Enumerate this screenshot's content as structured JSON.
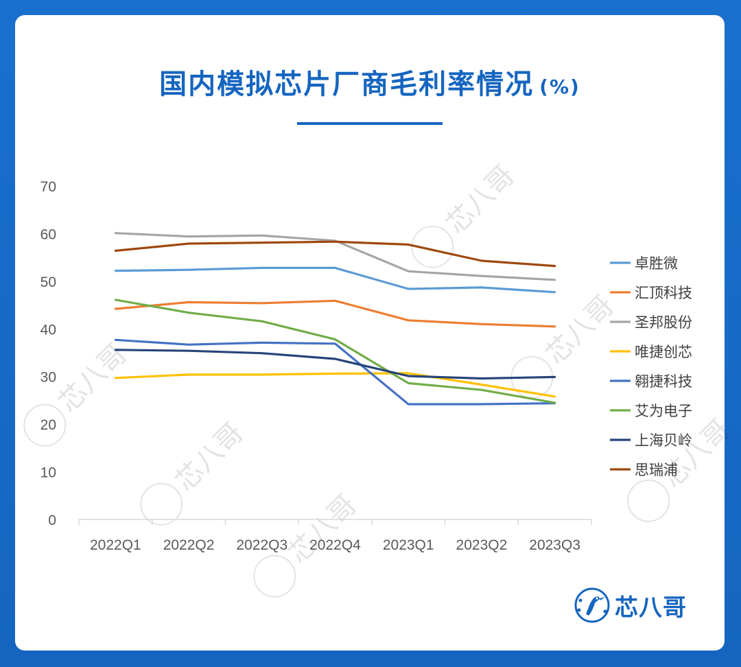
{
  "page": {
    "title": "国内模拟芯片厂商毛利率情况",
    "title_unit": "(%)",
    "brand_name": "芯八哥",
    "background_color": "#1565c0",
    "card_color": "#ffffff",
    "watermark_text": "芯八哥"
  },
  "chart_data": {
    "type": "line",
    "title": "国内模拟芯片厂商毛利率情况",
    "categories": [
      "2022Q1",
      "2022Q2",
      "2022Q3",
      "2022Q4",
      "2023Q1",
      "2023Q2",
      "2023Q3"
    ],
    "yticks": [
      "0",
      "10",
      "20",
      "30",
      "40",
      "50",
      "60",
      "70"
    ],
    "ylim": [
      0,
      70
    ],
    "grid": false,
    "legend_position": "right",
    "series": [
      {
        "name": "卓胜微",
        "color": "#5b9bd5",
        "values": [
          52.2,
          52.4,
          52.8,
          52.8,
          48.4,
          48.7,
          47.7
        ]
      },
      {
        "name": "汇顶科技",
        "color": "#ed7d31",
        "values": [
          44.2,
          45.6,
          45.4,
          45.9,
          41.8,
          41.0,
          40.5
        ]
      },
      {
        "name": "圣邦股份",
        "color": "#a5a5a5",
        "values": [
          60.1,
          59.4,
          59.6,
          58.5,
          52.1,
          51.1,
          50.3
        ]
      },
      {
        "name": "唯捷创芯",
        "color": "#ffc000",
        "values": [
          29.7,
          30.4,
          30.4,
          30.6,
          30.7,
          28.3,
          25.8
        ]
      },
      {
        "name": "翱捷科技",
        "color": "#4472c4",
        "values": [
          37.7,
          36.7,
          37.1,
          36.9,
          24.2,
          24.2,
          24.4
        ]
      },
      {
        "name": "艾为电子",
        "color": "#70ad47",
        "values": [
          46.1,
          43.4,
          41.6,
          37.8,
          28.6,
          27.2,
          24.5
        ]
      },
      {
        "name": "上海贝岭",
        "color": "#264478",
        "values": [
          35.6,
          35.4,
          34.9,
          33.7,
          30.1,
          29.6,
          29.9
        ]
      },
      {
        "name": "思瑞浦",
        "color": "#9e480e",
        "values": [
          56.4,
          57.9,
          58.1,
          58.3,
          57.7,
          54.3,
          53.2
        ]
      }
    ]
  }
}
